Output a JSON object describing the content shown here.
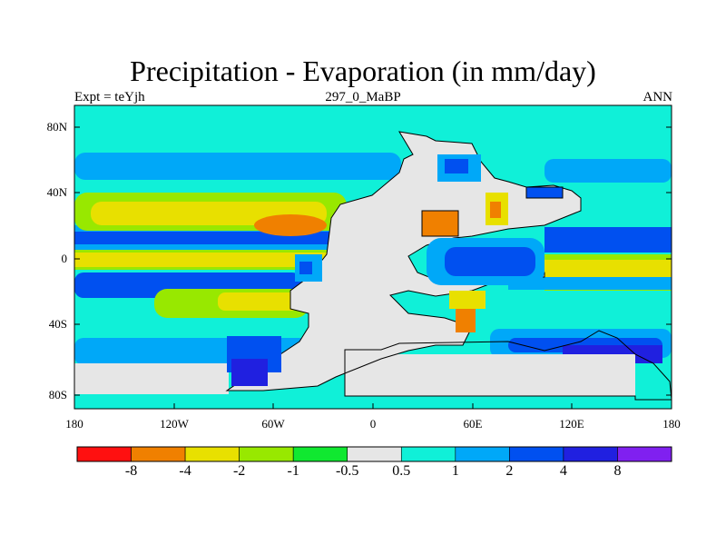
{
  "title": "Precipitation - Evaporation (in mm/day)",
  "subtitle_left": "Expt = teYjh",
  "subtitle_center": "297_0_MaBP",
  "subtitle_right": "ANN",
  "lat_labels": [
    "80N",
    "40N",
    "0",
    "40S",
    "80S"
  ],
  "lon_labels": [
    "180",
    "120W",
    "60W",
    "0",
    "60E",
    "120E",
    "180"
  ],
  "colorbar": {
    "colors": [
      "#ff1010",
      "#f08000",
      "#e8e000",
      "#98e800",
      "#10e830",
      "#e6e6e6",
      "#10f0d8",
      "#00a8f8",
      "#0050f0",
      "#2020e0",
      "#8020f0"
    ],
    "labels": [
      "-8",
      "-4",
      "-2",
      "-1",
      "-0.5",
      "0.5",
      "1",
      "2",
      "4",
      "8"
    ]
  },
  "colors": {
    "ocean_base": "#10f0d8",
    "land": "#e6e6e6",
    "coast": "#000000"
  }
}
